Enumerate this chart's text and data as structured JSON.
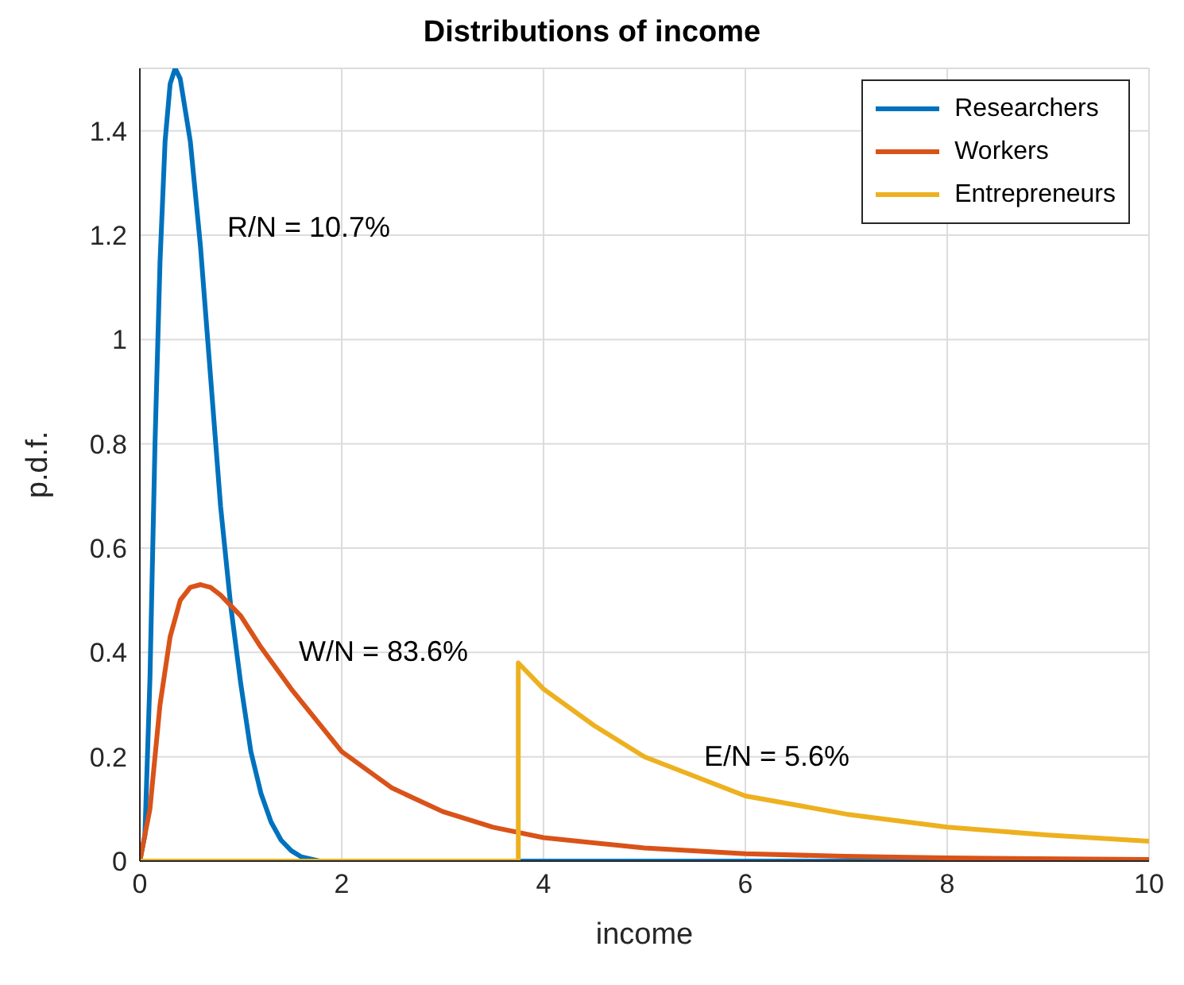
{
  "chart_data": {
    "type": "line",
    "title": "Distributions of income",
    "xlabel": "income",
    "ylabel": "p.d.f.",
    "xlim": [
      0,
      10
    ],
    "xticks": [
      0,
      2,
      4,
      6,
      8,
      10
    ],
    "ylim": [
      0,
      1.52
    ],
    "yticks": [
      0,
      0.2,
      0.4,
      0.6,
      0.8,
      1,
      1.2,
      1.4
    ],
    "grid": true,
    "legend": "top right",
    "series": [
      {
        "name": "Researchers",
        "color": "#0072bd",
        "x": [
          0,
          0.05,
          0.1,
          0.15,
          0.2,
          0.25,
          0.3,
          0.35,
          0.4,
          0.5,
          0.6,
          0.7,
          0.8,
          0.9,
          1.0,
          1.1,
          1.2,
          1.3,
          1.4,
          1.5,
          1.6,
          1.78,
          10
        ],
        "values": [
          0,
          0.05,
          0.35,
          0.8,
          1.15,
          1.38,
          1.49,
          1.52,
          1.5,
          1.38,
          1.18,
          0.93,
          0.68,
          0.49,
          0.34,
          0.21,
          0.13,
          0.075,
          0.04,
          0.02,
          0.008,
          0,
          0
        ]
      },
      {
        "name": "Workers",
        "color": "#d95319",
        "x": [
          0,
          0.1,
          0.2,
          0.3,
          0.4,
          0.5,
          0.6,
          0.7,
          0.8,
          1.0,
          1.2,
          1.5,
          2,
          2.5,
          3,
          3.5,
          4,
          5,
          6,
          7,
          8,
          10
        ],
        "values": [
          0,
          0.1,
          0.3,
          0.43,
          0.5,
          0.525,
          0.53,
          0.525,
          0.51,
          0.47,
          0.41,
          0.33,
          0.21,
          0.14,
          0.095,
          0.065,
          0.045,
          0.025,
          0.014,
          0.009,
          0.006,
          0.003
        ]
      },
      {
        "name": "Entrepreneurs",
        "color": "#edb120",
        "x": [
          0,
          3.75,
          3.75,
          4,
          4.5,
          5,
          6,
          7,
          8,
          9,
          10
        ],
        "values": [
          0,
          0,
          0.38,
          0.33,
          0.26,
          0.2,
          0.125,
          0.09,
          0.065,
          0.05,
          0.038
        ]
      }
    ],
    "annotations": [
      "R/N = 10.7%",
      "W/N = 83.6%",
      "E/N = 5.6%"
    ]
  }
}
